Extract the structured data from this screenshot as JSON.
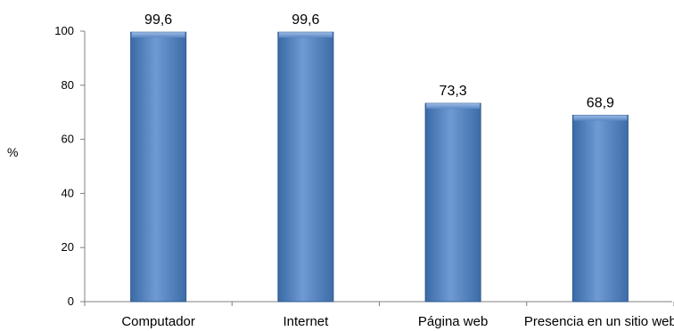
{
  "chart_data": {
    "type": "bar",
    "categories": [
      "Computador",
      "Internet",
      "Página web",
      "Presencia en un sitio web"
    ],
    "values": [
      99.6,
      99.6,
      73.3,
      68.9
    ],
    "data_labels": [
      "99,6",
      "99,6",
      "73,3",
      "68,9"
    ],
    "ylabel": "%",
    "ylim": [
      0,
      100
    ],
    "yticks": [
      0,
      20,
      40,
      60,
      80,
      100
    ],
    "grid": false,
    "legend": "none",
    "bar_color": "#4f81bd",
    "bar_edge_color": "#2f5a8f"
  }
}
